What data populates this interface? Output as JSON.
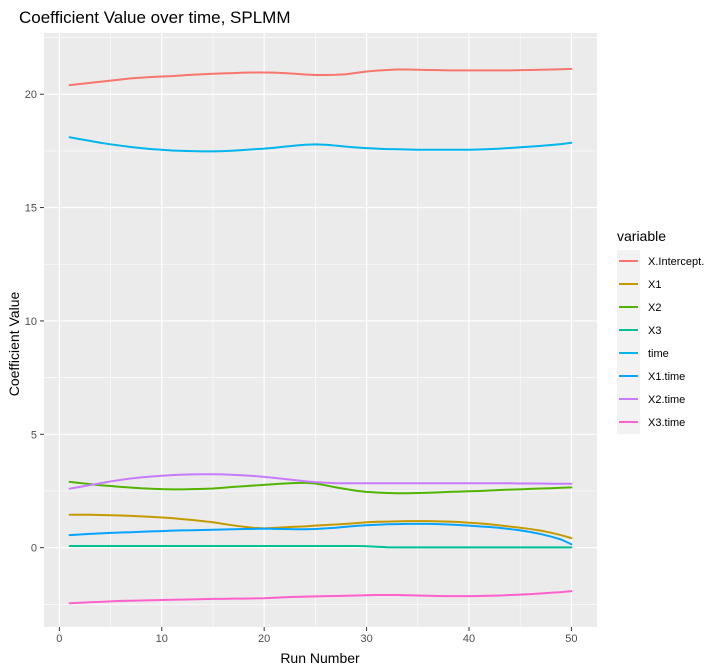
{
  "chart_data": {
    "type": "line",
    "title": "Coefficient Value over time, SPLMM",
    "xlabel": "Run Number",
    "ylabel": "Coefficient Value",
    "xlim": [
      -1.5,
      52.5
    ],
    "ylim": [
      -3.5,
      22.7
    ],
    "x_ticks": [
      0,
      10,
      20,
      30,
      40,
      50
    ],
    "y_ticks": [
      0,
      5,
      10,
      15,
      20
    ],
    "grid": true,
    "legend": {
      "title": "variable",
      "placement": "right"
    },
    "x": [
      1,
      2,
      3,
      4,
      5,
      6,
      7,
      8,
      9,
      10,
      11,
      12,
      13,
      14,
      15,
      16,
      17,
      18,
      19,
      20,
      21,
      22,
      23,
      24,
      25,
      26,
      27,
      28,
      29,
      30,
      31,
      32,
      33,
      34,
      35,
      36,
      37,
      38,
      39,
      40,
      41,
      42,
      43,
      44,
      45,
      46,
      47,
      48,
      49,
      50
    ],
    "series": [
      {
        "name": "X.Intercept.",
        "color": "#F8766D",
        "values": [
          20.4,
          20.45,
          20.5,
          20.55,
          20.6,
          20.65,
          20.7,
          20.73,
          20.76,
          20.78,
          20.8,
          20.83,
          20.86,
          20.88,
          20.9,
          20.92,
          20.93,
          20.95,
          20.96,
          20.96,
          20.95,
          20.93,
          20.9,
          20.87,
          20.85,
          20.85,
          20.86,
          20.88,
          20.94,
          21.0,
          21.04,
          21.07,
          21.09,
          21.09,
          21.08,
          21.07,
          21.06,
          21.05,
          21.05,
          21.05,
          21.05,
          21.05,
          21.05,
          21.05,
          21.06,
          21.07,
          21.08,
          21.09,
          21.1,
          21.12
        ]
      },
      {
        "name": "X1",
        "color": "#C49A00",
        "values": [
          1.45,
          1.45,
          1.45,
          1.44,
          1.43,
          1.42,
          1.4,
          1.38,
          1.36,
          1.33,
          1.3,
          1.26,
          1.22,
          1.17,
          1.12,
          1.05,
          0.98,
          0.92,
          0.87,
          0.85,
          0.87,
          0.9,
          0.92,
          0.94,
          0.97,
          1.0,
          1.02,
          1.05,
          1.08,
          1.12,
          1.14,
          1.15,
          1.16,
          1.17,
          1.17,
          1.17,
          1.16,
          1.15,
          1.13,
          1.1,
          1.07,
          1.03,
          0.98,
          0.93,
          0.88,
          0.82,
          0.75,
          0.66,
          0.55,
          0.42
        ]
      },
      {
        "name": "X2",
        "color": "#53B400",
        "values": [
          2.9,
          2.85,
          2.8,
          2.75,
          2.72,
          2.68,
          2.65,
          2.62,
          2.6,
          2.58,
          2.57,
          2.57,
          2.58,
          2.59,
          2.61,
          2.64,
          2.68,
          2.71,
          2.74,
          2.77,
          2.8,
          2.83,
          2.85,
          2.86,
          2.83,
          2.75,
          2.66,
          2.58,
          2.51,
          2.46,
          2.43,
          2.41,
          2.4,
          2.4,
          2.41,
          2.42,
          2.44,
          2.46,
          2.47,
          2.49,
          2.5,
          2.52,
          2.54,
          2.56,
          2.57,
          2.59,
          2.61,
          2.62,
          2.64,
          2.66
        ]
      },
      {
        "name": "X3",
        "color": "#00C094",
        "values": [
          0.07,
          0.07,
          0.07,
          0.07,
          0.07,
          0.07,
          0.07,
          0.07,
          0.07,
          0.07,
          0.07,
          0.07,
          0.07,
          0.07,
          0.07,
          0.07,
          0.07,
          0.07,
          0.07,
          0.07,
          0.07,
          0.07,
          0.07,
          0.07,
          0.07,
          0.07,
          0.07,
          0.07,
          0.07,
          0.06,
          0.04,
          0.02,
          0.01,
          0.01,
          0.01,
          0.01,
          0.01,
          0.01,
          0.01,
          0.01,
          0.01,
          0.01,
          0.01,
          0.01,
          0.01,
          0.01,
          0.01,
          0.01,
          0.01,
          0.01
        ]
      },
      {
        "name": "time",
        "color": "#00B6EB",
        "values": [
          18.1,
          18.02,
          17.94,
          17.86,
          17.79,
          17.73,
          17.67,
          17.62,
          17.58,
          17.55,
          17.52,
          17.5,
          17.49,
          17.48,
          17.48,
          17.49,
          17.51,
          17.54,
          17.57,
          17.6,
          17.64,
          17.69,
          17.73,
          17.77,
          17.79,
          17.77,
          17.73,
          17.69,
          17.65,
          17.62,
          17.6,
          17.58,
          17.57,
          17.56,
          17.55,
          17.55,
          17.55,
          17.55,
          17.55,
          17.55,
          17.56,
          17.58,
          17.6,
          17.63,
          17.66,
          17.69,
          17.72,
          17.76,
          17.8,
          17.86
        ]
      },
      {
        "name": "X1.time",
        "color": "#06A4FF",
        "values": [
          0.55,
          0.58,
          0.61,
          0.63,
          0.65,
          0.67,
          0.68,
          0.7,
          0.72,
          0.73,
          0.75,
          0.76,
          0.77,
          0.78,
          0.79,
          0.8,
          0.81,
          0.82,
          0.83,
          0.84,
          0.83,
          0.82,
          0.81,
          0.81,
          0.82,
          0.85,
          0.88,
          0.92,
          0.96,
          0.99,
          1.01,
          1.03,
          1.04,
          1.05,
          1.05,
          1.05,
          1.04,
          1.02,
          1.0,
          0.97,
          0.94,
          0.91,
          0.87,
          0.82,
          0.76,
          0.69,
          0.6,
          0.49,
          0.36,
          0.15
        ]
      },
      {
        "name": "X2.time",
        "color": "#C77CFF",
        "values": [
          2.6,
          2.68,
          2.76,
          2.84,
          2.92,
          2.99,
          3.05,
          3.1,
          3.14,
          3.17,
          3.2,
          3.22,
          3.23,
          3.24,
          3.24,
          3.23,
          3.21,
          3.19,
          3.16,
          3.12,
          3.08,
          3.03,
          2.98,
          2.93,
          2.89,
          2.86,
          2.84,
          2.84,
          2.84,
          2.84,
          2.84,
          2.84,
          2.84,
          2.84,
          2.84,
          2.84,
          2.84,
          2.84,
          2.84,
          2.84,
          2.84,
          2.84,
          2.84,
          2.84,
          2.83,
          2.83,
          2.83,
          2.82,
          2.82,
          2.82
        ]
      },
      {
        "name": "X3.time",
        "color": "#FF61CC",
        "values": [
          -2.45,
          -2.43,
          -2.41,
          -2.39,
          -2.37,
          -2.35,
          -2.34,
          -2.33,
          -2.32,
          -2.31,
          -2.3,
          -2.29,
          -2.28,
          -2.27,
          -2.26,
          -2.26,
          -2.25,
          -2.25,
          -2.24,
          -2.23,
          -2.21,
          -2.19,
          -2.17,
          -2.16,
          -2.15,
          -2.14,
          -2.13,
          -2.12,
          -2.11,
          -2.1,
          -2.09,
          -2.09,
          -2.09,
          -2.1,
          -2.11,
          -2.12,
          -2.13,
          -2.14,
          -2.14,
          -2.14,
          -2.13,
          -2.12,
          -2.11,
          -2.09,
          -2.07,
          -2.05,
          -2.02,
          -1.99,
          -1.96,
          -1.92
        ]
      }
    ]
  }
}
